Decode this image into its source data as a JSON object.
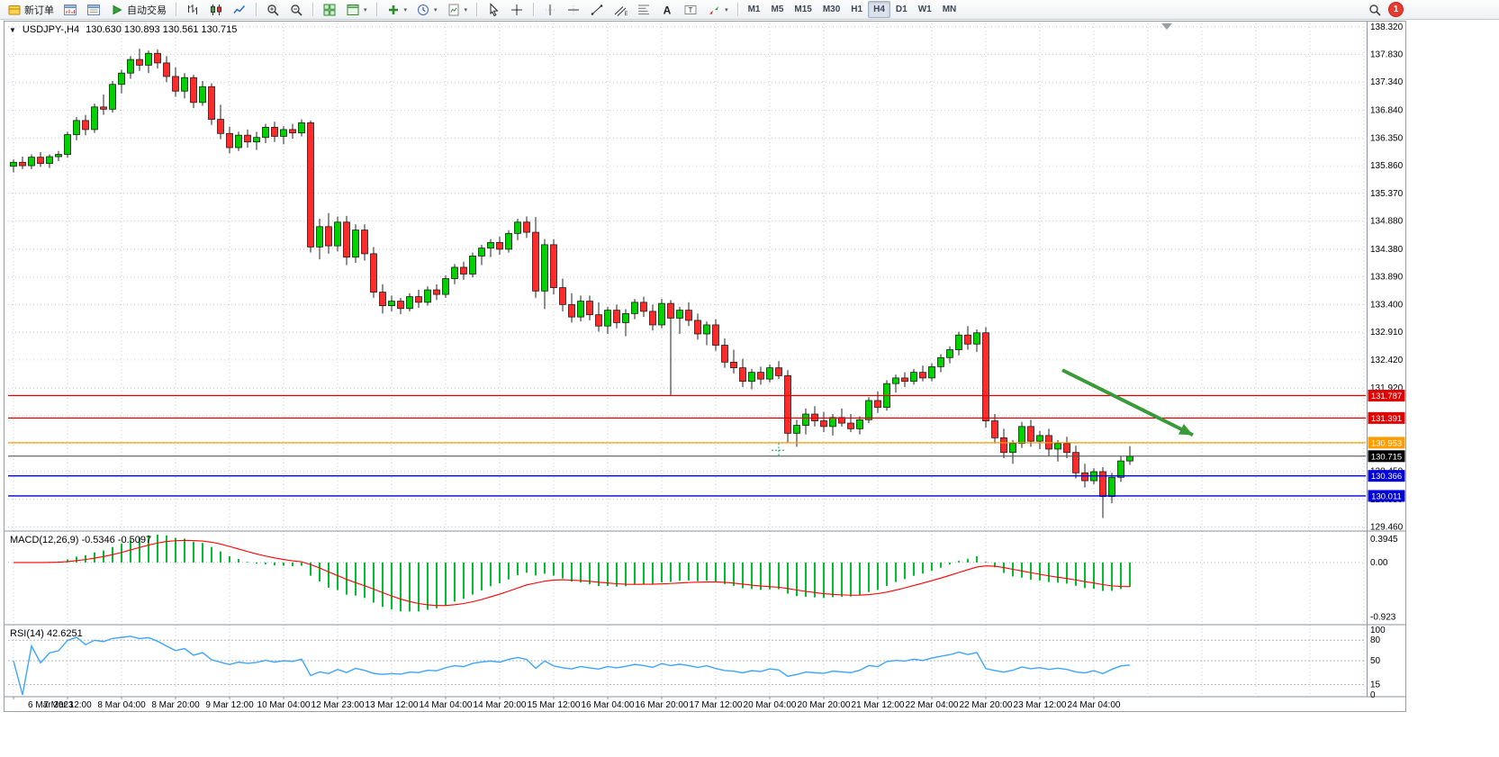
{
  "toolbar": {
    "buttons": [
      {
        "name": "new-order",
        "label": "新订单",
        "icon": "new-order-icon"
      },
      {
        "name": "market-watch",
        "icon": "market-watch-icon"
      },
      {
        "name": "data-window",
        "icon": "data-window-icon"
      },
      {
        "name": "auto-trading",
        "label": "自动交易",
        "icon": "autotrade-icon"
      },
      {
        "sep": true
      },
      {
        "name": "bar-chart",
        "icon": "bar-chart-icon"
      },
      {
        "name": "candlestick-chart",
        "icon": "candle-chart-icon"
      },
      {
        "name": "line-chart",
        "icon": "line-chart-icon"
      },
      {
        "sep": true
      },
      {
        "name": "zoom-in",
        "icon": "zoom-in-icon"
      },
      {
        "name": "zoom-out",
        "icon": "zoom-out-icon"
      },
      {
        "sep": true
      },
      {
        "name": "tile-windows",
        "icon": "tile-windows-icon"
      },
      {
        "name": "new-chart",
        "icon": "new-chart-icon",
        "dropdown": true
      },
      {
        "sep": true
      },
      {
        "name": "indicators",
        "icon": "indicators-icon",
        "dropdown": true
      },
      {
        "name": "periods",
        "icon": "period-icon",
        "dropdown": true
      },
      {
        "name": "templates",
        "icon": "template-icon",
        "dropdown": true
      },
      {
        "sep": true
      },
      {
        "name": "cursor",
        "icon": "cursor-icon"
      },
      {
        "name": "crosshair",
        "icon": "crosshair-icon"
      },
      {
        "sep": true
      },
      {
        "name": "vertical-line",
        "icon": "vline-icon"
      },
      {
        "name": "horizontal-line",
        "icon": "hline-icon"
      },
      {
        "name": "trendline",
        "icon": "trendline-icon"
      },
      {
        "name": "equidistant-channel",
        "icon": "channel-icon"
      },
      {
        "name": "fibonacci-retracement",
        "icon": "fibo-icon"
      },
      {
        "name": "text",
        "icon": "text-icon"
      },
      {
        "name": "text-label",
        "icon": "label-icon"
      },
      {
        "name": "arrow-objects",
        "icon": "arrows-icon",
        "dropdown": true
      },
      {
        "sep": true
      }
    ],
    "timeframes": {
      "labels": [
        "M1",
        "M5",
        "M15",
        "M30",
        "H1",
        "H4",
        "D1",
        "W1",
        "MN"
      ],
      "active": "H4"
    },
    "notification": {
      "count": "1"
    }
  },
  "chart": {
    "header": {
      "collapse_icon": "▼",
      "title": "USDJPY-,H4",
      "ohlc": "130.630 130.893 130.561 130.715"
    },
    "macd_label": "MACD(12,26,9) -0.5346 -0.5097",
    "rsi_label": "RSI(14) 42.6251"
  },
  "chart_data": {
    "type": "candlestick",
    "symbol": "USDJPY-",
    "timeframe": "H4",
    "title": "USDJPY-,H4",
    "ohlc_current": {
      "open": 130.63,
      "high": 130.893,
      "low": 130.561,
      "close": 130.715
    },
    "price_axis": {
      "min": 129.42,
      "max": 138.38,
      "ticks": [
        "138.320",
        "137.830",
        "137.340",
        "136.840",
        "136.350",
        "135.860",
        "135.370",
        "134.880",
        "134.380",
        "133.890",
        "133.400",
        "132.910",
        "132.420",
        "131.920",
        "131.430",
        "130.940",
        "130.450",
        "129.950",
        "129.460"
      ]
    },
    "time_axis": {
      "labels": [
        "6 Mar 2023",
        "7 Mar 12:00",
        "8 Mar 04:00",
        "8 Mar 20:00",
        "9 Mar 12:00",
        "10 Mar 04:00",
        "12 Mar 23:00",
        "13 Mar 12:00",
        "14 Mar 04:00",
        "14 Mar 20:00",
        "15 Mar 12:00",
        "16 Mar 04:00",
        "16 Mar 20:00",
        "17 Mar 12:00",
        "20 Mar 04:00",
        "20 Mar 20:00",
        "21 Mar 12:00",
        "22 Mar 04:00",
        "22 Mar 20:00",
        "23 Mar 12:00",
        "24 Mar 04:00"
      ],
      "candles_per_label": 6
    },
    "candles": [
      [
        135.85,
        135.97,
        135.74,
        135.92
      ],
      [
        135.92,
        136.02,
        135.8,
        135.86
      ],
      [
        135.86,
        136.06,
        135.8,
        136.01
      ],
      [
        136.01,
        136.1,
        135.84,
        135.9
      ],
      [
        135.9,
        136.06,
        135.82,
        136.02
      ],
      [
        136.02,
        136.12,
        135.94,
        136.06
      ],
      [
        136.06,
        136.46,
        136.0,
        136.41
      ],
      [
        136.41,
        136.72,
        136.31,
        136.66
      ],
      [
        136.66,
        136.76,
        136.4,
        136.5
      ],
      [
        136.5,
        136.96,
        136.44,
        136.9
      ],
      [
        136.9,
        137.12,
        136.76,
        136.86
      ],
      [
        136.86,
        137.36,
        136.8,
        137.3
      ],
      [
        137.3,
        137.56,
        137.14,
        137.5
      ],
      [
        137.5,
        137.8,
        137.4,
        137.74
      ],
      [
        137.74,
        137.93,
        137.54,
        137.64
      ],
      [
        137.64,
        137.9,
        137.5,
        137.85
      ],
      [
        137.85,
        137.92,
        137.58,
        137.68
      ],
      [
        137.68,
        137.8,
        137.34,
        137.44
      ],
      [
        137.44,
        137.6,
        137.08,
        137.18
      ],
      [
        137.18,
        137.5,
        137.05,
        137.42
      ],
      [
        137.42,
        137.47,
        136.88,
        136.98
      ],
      [
        136.98,
        137.36,
        136.92,
        137.26
      ],
      [
        137.26,
        137.32,
        136.58,
        136.68
      ],
      [
        136.68,
        136.94,
        136.33,
        136.43
      ],
      [
        136.43,
        136.55,
        136.08,
        136.18
      ],
      [
        136.18,
        136.46,
        136.12,
        136.4
      ],
      [
        136.4,
        136.5,
        136.18,
        136.28
      ],
      [
        136.28,
        136.46,
        136.14,
        136.36
      ],
      [
        136.36,
        136.6,
        136.26,
        136.54
      ],
      [
        136.54,
        136.64,
        136.28,
        136.38
      ],
      [
        136.38,
        136.56,
        136.24,
        136.5
      ],
      [
        136.5,
        136.6,
        136.34,
        136.44
      ],
      [
        136.44,
        136.68,
        136.38,
        136.62
      ],
      [
        136.62,
        136.66,
        134.32,
        134.42
      ],
      [
        134.42,
        134.92,
        134.2,
        134.78
      ],
      [
        134.78,
        135.02,
        134.3,
        134.44
      ],
      [
        134.44,
        134.96,
        134.34,
        134.86
      ],
      [
        134.86,
        134.97,
        134.1,
        134.24
      ],
      [
        134.24,
        134.82,
        134.14,
        134.72
      ],
      [
        134.72,
        134.82,
        134.18,
        134.3
      ],
      [
        134.3,
        134.42,
        133.52,
        133.62
      ],
      [
        133.62,
        133.76,
        133.24,
        133.38
      ],
      [
        133.38,
        133.56,
        133.28,
        133.46
      ],
      [
        133.46,
        133.52,
        133.23,
        133.33
      ],
      [
        133.33,
        133.6,
        133.28,
        133.54
      ],
      [
        133.54,
        133.66,
        133.34,
        133.44
      ],
      [
        133.44,
        133.72,
        133.38,
        133.66
      ],
      [
        133.66,
        133.76,
        133.48,
        133.58
      ],
      [
        133.58,
        133.92,
        133.52,
        133.86
      ],
      [
        133.86,
        134.12,
        133.76,
        134.06
      ],
      [
        134.06,
        134.16,
        133.84,
        133.94
      ],
      [
        133.94,
        134.32,
        133.88,
        134.26
      ],
      [
        134.26,
        134.46,
        134.1,
        134.4
      ],
      [
        134.4,
        134.56,
        134.24,
        134.5
      ],
      [
        134.5,
        134.6,
        134.28,
        134.38
      ],
      [
        134.38,
        134.72,
        134.32,
        134.66
      ],
      [
        134.66,
        134.92,
        134.54,
        134.86
      ],
      [
        134.86,
        134.96,
        134.58,
        134.68
      ],
      [
        134.68,
        134.95,
        133.52,
        133.64
      ],
      [
        133.64,
        134.56,
        133.32,
        134.46
      ],
      [
        134.46,
        134.56,
        133.58,
        133.7
      ],
      [
        133.7,
        133.86,
        133.28,
        133.4
      ],
      [
        133.4,
        133.6,
        133.08,
        133.18
      ],
      [
        133.18,
        133.56,
        133.1,
        133.46
      ],
      [
        133.46,
        133.56,
        133.12,
        133.22
      ],
      [
        133.22,
        133.44,
        132.92,
        133.02
      ],
      [
        133.02,
        133.36,
        132.88,
        133.3
      ],
      [
        133.3,
        133.4,
        132.98,
        133.08
      ],
      [
        133.08,
        133.32,
        132.84,
        133.24
      ],
      [
        133.24,
        133.5,
        133.14,
        133.44
      ],
      [
        133.44,
        133.54,
        133.18,
        133.28
      ],
      [
        133.28,
        133.4,
        132.94,
        133.04
      ],
      [
        133.04,
        133.5,
        132.98,
        133.42
      ],
      [
        133.42,
        133.48,
        131.79,
        133.16
      ],
      [
        133.16,
        133.36,
        132.88,
        133.3
      ],
      [
        133.3,
        133.44,
        133.02,
        133.12
      ],
      [
        133.12,
        133.24,
        132.78,
        132.88
      ],
      [
        132.88,
        133.1,
        132.68,
        133.04
      ],
      [
        133.04,
        133.14,
        132.58,
        132.68
      ],
      [
        132.68,
        132.8,
        132.28,
        132.38
      ],
      [
        132.38,
        132.6,
        132.18,
        132.28
      ],
      [
        132.28,
        132.44,
        131.94,
        132.04
      ],
      [
        132.04,
        132.26,
        131.9,
        132.2
      ],
      [
        132.2,
        132.3,
        131.98,
        132.08
      ],
      [
        132.08,
        132.34,
        132.02,
        132.28
      ],
      [
        132.28,
        132.4,
        132.08,
        132.14
      ],
      [
        132.14,
        132.24,
        130.96,
        131.12
      ],
      [
        131.12,
        131.36,
        130.88,
        131.26
      ],
      [
        131.26,
        131.56,
        131.1,
        131.46
      ],
      [
        131.46,
        131.6,
        131.24,
        131.34
      ],
      [
        131.34,
        131.5,
        131.14,
        131.24
      ],
      [
        131.24,
        131.46,
        131.08,
        131.4
      ],
      [
        131.4,
        131.56,
        131.24,
        131.3
      ],
      [
        131.3,
        131.46,
        131.14,
        131.2
      ],
      [
        131.2,
        131.42,
        131.1,
        131.36
      ],
      [
        131.36,
        131.76,
        131.3,
        131.7
      ],
      [
        131.7,
        131.86,
        131.48,
        131.58
      ],
      [
        131.58,
        132.06,
        131.52,
        132.0
      ],
      [
        132.0,
        132.16,
        131.84,
        132.1
      ],
      [
        132.1,
        132.2,
        131.94,
        132.04
      ],
      [
        132.04,
        132.26,
        131.98,
        132.2
      ],
      [
        132.2,
        132.32,
        132.04,
        132.1
      ],
      [
        132.1,
        132.36,
        132.04,
        132.3
      ],
      [
        132.3,
        132.52,
        132.2,
        132.46
      ],
      [
        132.46,
        132.66,
        132.36,
        132.6
      ],
      [
        132.6,
        132.92,
        132.5,
        132.86
      ],
      [
        132.86,
        133.02,
        132.6,
        132.7
      ],
      [
        132.7,
        132.96,
        132.56,
        132.9
      ],
      [
        132.9,
        133.0,
        131.22,
        131.34
      ],
      [
        131.34,
        131.46,
        130.94,
        131.04
      ],
      [
        131.04,
        131.2,
        130.68,
        130.78
      ],
      [
        130.78,
        131.0,
        130.58,
        130.94
      ],
      [
        130.94,
        131.32,
        130.86,
        131.24
      ],
      [
        131.24,
        131.36,
        130.88,
        130.98
      ],
      [
        130.98,
        131.16,
        130.84,
        131.08
      ],
      [
        131.08,
        131.2,
        130.72,
        130.84
      ],
      [
        130.84,
        131.0,
        130.62,
        130.94
      ],
      [
        130.94,
        131.06,
        130.68,
        130.78
      ],
      [
        130.78,
        130.9,
        130.32,
        130.42
      ],
      [
        130.42,
        130.58,
        130.16,
        130.28
      ],
      [
        130.28,
        130.5,
        130.22,
        130.44
      ],
      [
        130.44,
        130.52,
        129.62,
        130.0
      ],
      [
        130.0,
        130.42,
        129.88,
        130.34
      ],
      [
        130.34,
        130.72,
        130.26,
        130.63
      ],
      [
        130.63,
        130.893,
        130.561,
        130.715
      ]
    ],
    "levels": [
      {
        "price": 131.787,
        "label": "131.787",
        "color": "#e00000"
      },
      {
        "price": 131.391,
        "label": "131.391",
        "color": "#e00000"
      },
      {
        "price": 130.953,
        "label": "130.953",
        "color": "#ff9c00"
      },
      {
        "price": 130.366,
        "label": "130.366",
        "color": "#0000d8"
      },
      {
        "price": 130.011,
        "label": "130.011",
        "color": "#0000d8"
      }
    ],
    "current_price": {
      "value": 130.715,
      "label": "130.715",
      "color": "#000000"
    },
    "annotations": {
      "trend_arrow": {
        "from_candle": 116.5,
        "from_price": 132.24,
        "to_candle": 131,
        "to_price": 131.09,
        "color": "#3a9a3a"
      },
      "cross_marker": {
        "candle": 85,
        "price": 130.82,
        "color": "#00a050"
      }
    },
    "colors": {
      "bull": "#00d200",
      "bear": "#ff2b2b",
      "candle_border": "#1c1c1c",
      "wick": "#222222",
      "grid": "#c9c9c9",
      "macd_histogram": "#00c032",
      "macd_signal": "#ff0000",
      "rsi_line": "#3da5ff"
    },
    "indicators": {
      "macd": {
        "label": "MACD(12,26,9)",
        "value_main": "-0.5346",
        "value_signal": "-0.5097",
        "fast": 12,
        "slow": 26,
        "smoothing": 9,
        "axis_ticks": [
          "0.3945",
          "0.00",
          "-0.923"
        ]
      },
      "rsi": {
        "label": "RSI(14)",
        "value": "42.6251",
        "period": 14,
        "axis_ticks": [
          "100",
          "80",
          "50",
          "15",
          "0"
        ],
        "levels": [
          80,
          50,
          15
        ]
      }
    }
  }
}
